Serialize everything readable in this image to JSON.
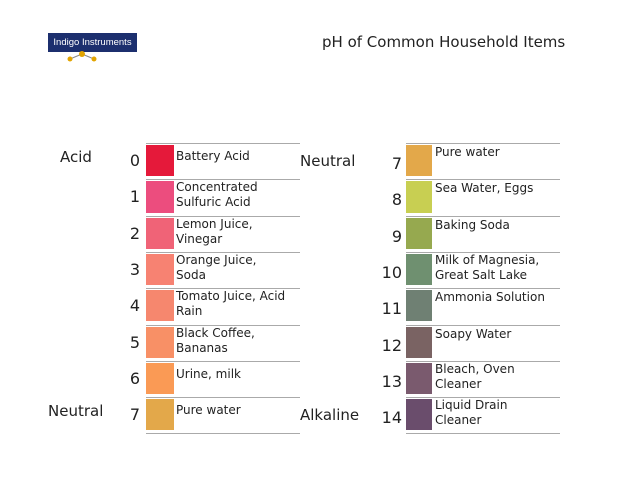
{
  "header": {
    "logo": "Indigo Instruments",
    "title": "pH of Common Household Items"
  },
  "columns": [
    {
      "side_labels": [
        {
          "row": 0,
          "text": "Acid"
        },
        {
          "row": 7,
          "text": "Neutral"
        }
      ],
      "rows": [
        {
          "ph": "0",
          "color": "#e5193a",
          "lines": [
            "Battery Acid"
          ]
        },
        {
          "ph": "1",
          "color": "#ec4d7e",
          "lines": [
            "Concentrated",
            "Sulfuric Acid"
          ]
        },
        {
          "ph": "2",
          "color": "#f06377",
          "lines": [
            "Lemon Juice,",
            "Vinegar"
          ]
        },
        {
          "ph": "3",
          "color": "#f78272",
          "lines": [
            "Orange Juice,",
            "Soda"
          ]
        },
        {
          "ph": "4",
          "color": "#f6876e",
          "lines": [
            "Tomato Juice, Acid",
            "Rain"
          ]
        },
        {
          "ph": "5",
          "color": "#f89066",
          "lines": [
            "Black Coffee,",
            "Bananas"
          ]
        },
        {
          "ph": "6",
          "color": "#fa9a55",
          "lines": [
            "Urine, milk"
          ]
        },
        {
          "ph": "7",
          "color": "#e3a84a",
          "lines": [
            "Pure water"
          ]
        }
      ]
    },
    {
      "side_labels": [
        {
          "row": 0,
          "text": "Neutral"
        },
        {
          "row": 7,
          "text": "Alkaline"
        }
      ],
      "rows": [
        {
          "ph": "7",
          "color": "#e3a84a",
          "lines": [
            "Pure water"
          ]
        },
        {
          "ph": "8",
          "color": "#c8cf52",
          "lines": [
            "Sea Water, Eggs"
          ]
        },
        {
          "ph": "9",
          "color": "#96a94f",
          "lines": [
            "Baking Soda"
          ]
        },
        {
          "ph": "10",
          "color": "#6f9070",
          "lines": [
            "Milk of Magnesia,",
            "Great Salt Lake"
          ]
        },
        {
          "ph": "11",
          "color": "#6f8073",
          "lines": [
            "Ammonia Solution"
          ]
        },
        {
          "ph": "12",
          "color": "#7a6363",
          "lines": [
            "Soapy Water"
          ]
        },
        {
          "ph": "13",
          "color": "#7a5a6e",
          "lines": [
            "Bleach, Oven",
            "Cleaner"
          ]
        },
        {
          "ph": "14",
          "color": "#6a4d6c",
          "lines": [
            "Liquid Drain",
            "Cleaner"
          ]
        }
      ]
    }
  ]
}
